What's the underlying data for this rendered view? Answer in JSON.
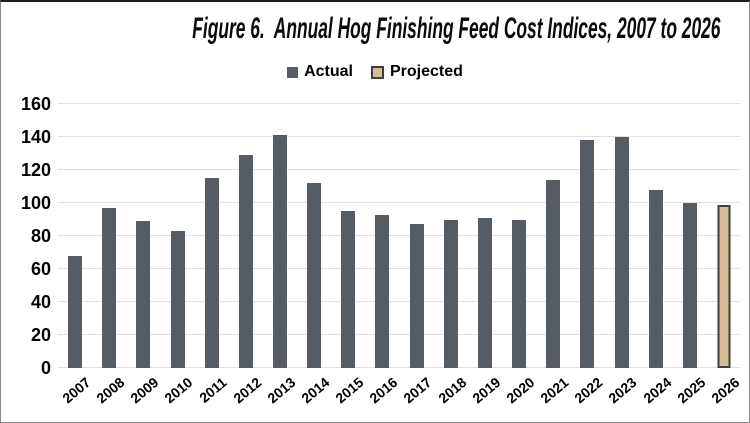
{
  "chart_data": {
    "type": "bar",
    "title": "Figure 6.  Annual Hog Finishing Feed Cost Indices, 2007 to 2026",
    "categories": [
      "2007",
      "2008",
      "2009",
      "2010",
      "2011",
      "2012",
      "2013",
      "2014",
      "2015",
      "2016",
      "2017",
      "2018",
      "2019",
      "2020",
      "2021",
      "2022",
      "2023",
      "2024",
      "2025",
      "2026"
    ],
    "series": [
      {
        "name": "Actual",
        "color": "#565c64",
        "values": [
          68,
          97,
          89,
          83,
          115,
          129,
          141,
          112,
          95,
          93,
          87,
          90,
          91,
          90,
          114,
          138,
          140,
          108,
          100,
          null
        ]
      },
      {
        "name": "Projected",
        "color": "#d4bd95",
        "border_color": "#3e3e3e",
        "values": [
          null,
          null,
          null,
          null,
          null,
          null,
          null,
          null,
          null,
          null,
          null,
          null,
          null,
          null,
          null,
          null,
          null,
          null,
          null,
          99
        ]
      }
    ],
    "xlabel": "",
    "ylabel": "",
    "ylim": [
      0,
      160
    ],
    "yticks": [
      0,
      20,
      40,
      60,
      80,
      100,
      120,
      140,
      160
    ],
    "grid": true,
    "gridline_color": "#e1e1e1",
    "legend_position": "top"
  }
}
